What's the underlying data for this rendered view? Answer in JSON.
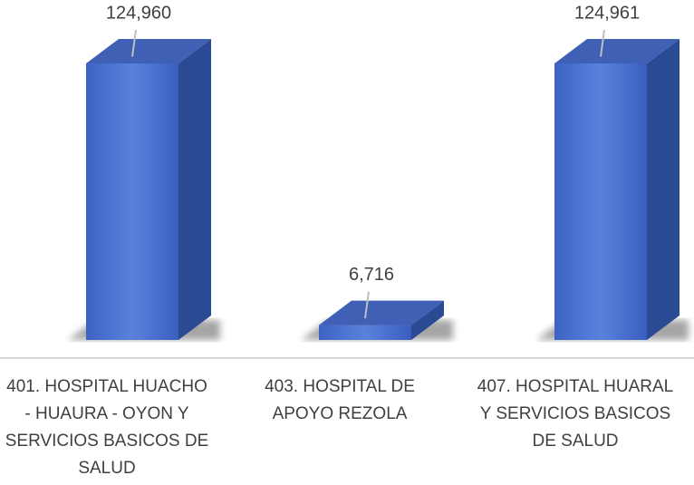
{
  "chart_data": {
    "type": "bar3d",
    "categories": [
      "401. HOSPITAL HUACHO - HUAURA - OYON Y SERVICIOS BASICOS DE SALUD",
      "403. HOSPITAL DE APOYO REZOLA",
      "407. HOSPITAL HUARAL Y SERVICIOS BASICOS DE SALUD"
    ],
    "values": [
      124960,
      6716,
      124961
    ],
    "value_labels": [
      "124,960",
      "6,716",
      "124,961"
    ],
    "color": "#4a72d0"
  }
}
